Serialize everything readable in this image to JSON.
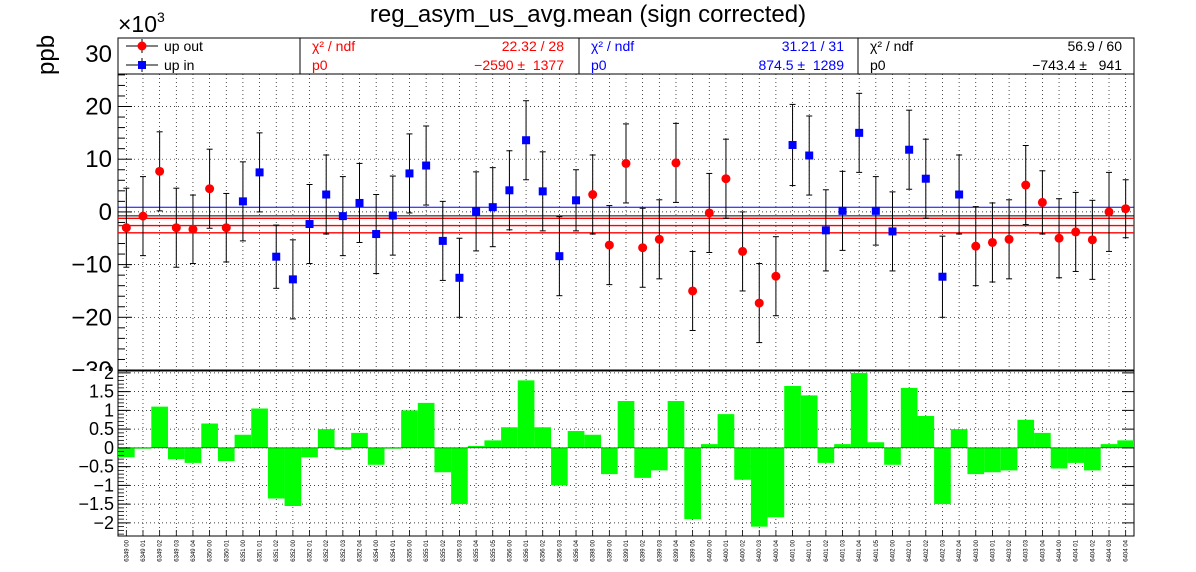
{
  "title": "reg_asym_us_avg.mean (sign corrected)",
  "exponent_label": "×10",
  "exponent_power": "3",
  "ylabel": "ppb",
  "legend": {
    "series": [
      {
        "name": "up out",
        "color": "#ff0000"
      },
      {
        "name": "up in",
        "color": "#0000ff"
      }
    ],
    "fits": [
      {
        "chi_label": "χ² / ndf",
        "chi_value": "22.32 / 28",
        "p0_label": "p0",
        "p0_value": "−2590 ±  1377",
        "color": "#ff0000"
      },
      {
        "chi_label": "χ² / ndf",
        "chi_value": "31.21 / 31",
        "p0_label": "p0",
        "p0_value": "874.5 ±  1289",
        "color": "#0000ff"
      },
      {
        "chi_label": "χ² / ndf",
        "chi_value": "56.9 / 60",
        "p0_label": "p0",
        "p0_value": "−743.4 ±   941",
        "color": "#000000"
      }
    ]
  },
  "chart_data": [
    {
      "type": "scatter",
      "title": "reg_asym_us_avg.mean (sign corrected)",
      "ylabel": "ppb",
      "y_multiplier": "×10³",
      "ylim": [
        -30,
        33
      ],
      "yticks": [
        -30,
        -20,
        -10,
        0,
        10,
        20,
        30
      ],
      "grid": true,
      "legend_position": "top",
      "series": [
        {
          "name": "up out",
          "color": "#ff0000",
          "marker": "circle"
        },
        {
          "name": "up in",
          "color": "#0000ff",
          "marker": "square"
        }
      ],
      "fit_lines": [
        {
          "color": "#ff0000",
          "value": -2.59,
          "error": 1.377
        },
        {
          "color": "#0000ff",
          "value": 0.8745,
          "error": 1.289
        },
        {
          "color": "#000000",
          "value": -0.7434,
          "error": 0.941
        }
      ],
      "points": [
        {
          "x": "6349_00",
          "y": -3.0,
          "err": 7.5,
          "s": 0
        },
        {
          "x": "6349_01",
          "y": -0.8,
          "err": 7.5,
          "s": 0
        },
        {
          "x": "6349_02",
          "y": 7.7,
          "err": 7.5,
          "s": 0
        },
        {
          "x": "6349_03",
          "y": -3.0,
          "err": 7.5,
          "s": 0
        },
        {
          "x": "6349_04",
          "y": -3.3,
          "err": 6.5,
          "s": 0
        },
        {
          "x": "6350_00",
          "y": 4.4,
          "err": 7.5,
          "s": 0
        },
        {
          "x": "6350_01",
          "y": -3.0,
          "err": 6.5,
          "s": 0
        },
        {
          "x": "6351_00",
          "y": 2.0,
          "err": 7.5,
          "s": 1
        },
        {
          "x": "6351_01",
          "y": 7.5,
          "err": 7.5,
          "s": 1
        },
        {
          "x": "6351_02",
          "y": -8.5,
          "err": 6.0,
          "s": 1
        },
        {
          "x": "6352_00",
          "y": -12.8,
          "err": 7.5,
          "s": 1
        },
        {
          "x": "6352_01",
          "y": -2.3,
          "err": 7.5,
          "s": 1
        },
        {
          "x": "6352_02",
          "y": 3.3,
          "err": 7.5,
          "s": 1
        },
        {
          "x": "6352_03",
          "y": -0.8,
          "err": 7.5,
          "s": 1
        },
        {
          "x": "6352_04",
          "y": 1.7,
          "err": 7.5,
          "s": 1
        },
        {
          "x": "6354_00",
          "y": -4.2,
          "err": 7.5,
          "s": 1
        },
        {
          "x": "6354_01",
          "y": -0.7,
          "err": 7.5,
          "s": 1
        },
        {
          "x": "6355_00",
          "y": 7.3,
          "err": 7.5,
          "s": 1
        },
        {
          "x": "6355_01",
          "y": 8.8,
          "err": 7.5,
          "s": 1
        },
        {
          "x": "6355_02",
          "y": -5.5,
          "err": 7.5,
          "s": 1
        },
        {
          "x": "6355_03",
          "y": -12.5,
          "err": 7.5,
          "s": 1
        },
        {
          "x": "6355_04",
          "y": 0.1,
          "err": 7.5,
          "s": 1
        },
        {
          "x": "6355_05",
          "y": 0.9,
          "err": 7.5,
          "s": 1
        },
        {
          "x": "6356_00",
          "y": 4.1,
          "err": 7.5,
          "s": 1
        },
        {
          "x": "6356_01",
          "y": 13.6,
          "err": 7.5,
          "s": 1
        },
        {
          "x": "6356_02",
          "y": 3.9,
          "err": 7.5,
          "s": 1
        },
        {
          "x": "6356_03",
          "y": -8.4,
          "err": 7.5,
          "s": 1
        },
        {
          "x": "6356_04",
          "y": 2.2,
          "err": 5.8,
          "s": 1
        },
        {
          "x": "6398_00",
          "y": 3.3,
          "err": 7.5,
          "s": 0
        },
        {
          "x": "6399_00",
          "y": -6.3,
          "err": 7.5,
          "s": 0
        },
        {
          "x": "6399_01",
          "y": 9.2,
          "err": 7.5,
          "s": 0
        },
        {
          "x": "6399_02",
          "y": -6.8,
          "err": 7.5,
          "s": 0
        },
        {
          "x": "6399_03",
          "y": -5.2,
          "err": 7.5,
          "s": 0
        },
        {
          "x": "6399_04",
          "y": 9.3,
          "err": 7.5,
          "s": 0
        },
        {
          "x": "6399_05",
          "y": -15.0,
          "err": 7.5,
          "s": 0
        },
        {
          "x": "6400_00",
          "y": -0.2,
          "err": 7.5,
          "s": 0
        },
        {
          "x": "6400_01",
          "y": 6.3,
          "err": 7.5,
          "s": 0
        },
        {
          "x": "6400_02",
          "y": -7.5,
          "err": 7.5,
          "s": 0
        },
        {
          "x": "6400_03",
          "y": -17.3,
          "err": 7.5,
          "s": 0
        },
        {
          "x": "6400_04",
          "y": -12.2,
          "err": 7.5,
          "s": 0
        },
        {
          "x": "6401_00",
          "y": 12.7,
          "err": 7.7,
          "s": 1
        },
        {
          "x": "6401_01",
          "y": 10.7,
          "err": 7.5,
          "s": 1
        },
        {
          "x": "6401_02",
          "y": -3.5,
          "err": 7.7,
          "s": 1
        },
        {
          "x": "6401_03",
          "y": 0.2,
          "err": 7.5,
          "s": 1
        },
        {
          "x": "6401_04",
          "y": 15.0,
          "err": 7.5,
          "s": 1
        },
        {
          "x": "6401_05",
          "y": 0.2,
          "err": 6.5,
          "s": 1
        },
        {
          "x": "6402_00",
          "y": -3.7,
          "err": 7.5,
          "s": 1
        },
        {
          "x": "6402_01",
          "y": 11.8,
          "err": 7.5,
          "s": 1
        },
        {
          "x": "6402_02",
          "y": 6.3,
          "err": 7.5,
          "s": 1
        },
        {
          "x": "6402_03",
          "y": -12.3,
          "err": 7.7,
          "s": 1
        },
        {
          "x": "6402_04",
          "y": 3.3,
          "err": 7.5,
          "s": 1
        },
        {
          "x": "6403_00",
          "y": -6.5,
          "err": 7.5,
          "s": 0
        },
        {
          "x": "6403_01",
          "y": -5.8,
          "err": 7.5,
          "s": 0
        },
        {
          "x": "6403_02",
          "y": -5.2,
          "err": 7.5,
          "s": 0
        },
        {
          "x": "6403_03",
          "y": 5.1,
          "err": 7.5,
          "s": 0
        },
        {
          "x": "6403_04",
          "y": 1.8,
          "err": 6.0,
          "s": 0
        },
        {
          "x": "6404_00",
          "y": -5.0,
          "err": 7.5,
          "s": 0
        },
        {
          "x": "6404_01",
          "y": -3.8,
          "err": 7.5,
          "s": 0
        },
        {
          "x": "6404_02",
          "y": -5.3,
          "err": 7.5,
          "s": 0
        },
        {
          "x": "6404_03",
          "y": 0.0,
          "err": 7.5,
          "s": 0
        },
        {
          "x": "6404_04",
          "y": 0.6,
          "err": 5.5,
          "s": 0
        }
      ]
    },
    {
      "type": "bar",
      "ylim": [
        -2.35,
        2.05
      ],
      "yticks": [
        -2,
        -1.5,
        -1,
        -0.5,
        0,
        0.5,
        1,
        1.5,
        2
      ],
      "grid": true,
      "color": "#00ff00",
      "categories": [
        "6349_00",
        "6349_01",
        "6349_02",
        "6349_03",
        "6349_04",
        "6350_00",
        "6350_01",
        "6351_00",
        "6351_01",
        "6351_02",
        "6352_00",
        "6352_01",
        "6352_02",
        "6352_03",
        "6352_04",
        "6354_00",
        "6354_01",
        "6355_00",
        "6355_01",
        "6355_02",
        "6355_03",
        "6355_04",
        "6355_05",
        "6356_00",
        "6356_01",
        "6356_02",
        "6356_03",
        "6356_04",
        "6398_00",
        "6399_00",
        "6399_01",
        "6399_02",
        "6399_03",
        "6399_04",
        "6399_05",
        "6400_00",
        "6400_01",
        "6400_02",
        "6400_03",
        "6400_04",
        "6401_00",
        "6401_01",
        "6401_02",
        "6401_03",
        "6401_04",
        "6401_05",
        "6402_00",
        "6402_01",
        "6402_02",
        "6402_03",
        "6402_04",
        "6403_00",
        "6403_01",
        "6403_02",
        "6403_03",
        "6403_04",
        "6404_00",
        "6404_01",
        "6404_02",
        "6404_03",
        "6404_04"
      ],
      "values": [
        -0.25,
        0.0,
        1.1,
        -0.3,
        -0.4,
        0.65,
        -0.35,
        0.35,
        1.05,
        -1.35,
        -1.55,
        -0.25,
        0.5,
        -0.05,
        0.4,
        -0.45,
        0.0,
        1.0,
        1.2,
        -0.65,
        -1.5,
        0.05,
        0.2,
        0.55,
        1.8,
        0.55,
        -1.0,
        0.45,
        0.35,
        -0.7,
        1.25,
        -0.8,
        -0.6,
        1.25,
        -1.9,
        0.1,
        0.9,
        -0.85,
        -2.1,
        -1.85,
        1.65,
        1.4,
        -0.4,
        0.1,
        2.0,
        0.15,
        -0.45,
        1.6,
        0.85,
        -1.5,
        0.5,
        -0.7,
        -0.65,
        -0.6,
        0.75,
        0.4,
        -0.55,
        -0.4,
        -0.6,
        0.1,
        0.2
      ]
    }
  ]
}
